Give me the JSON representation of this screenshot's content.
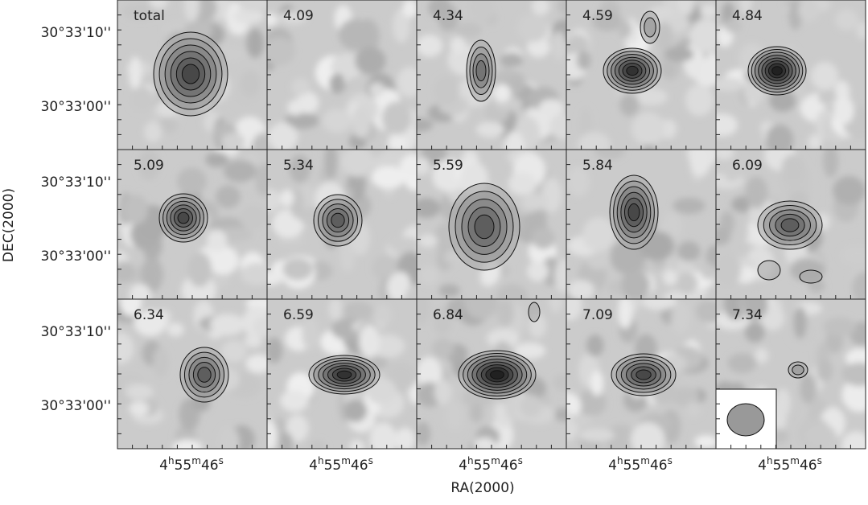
{
  "panels": [
    {
      "label": "total"
    },
    {
      "label": "4.09"
    },
    {
      "label": "4.34"
    },
    {
      "label": "4.59"
    },
    {
      "label": "4.84"
    },
    {
      "label": "5.09"
    },
    {
      "label": "5.34"
    },
    {
      "label": "5.59"
    },
    {
      "label": "5.84"
    },
    {
      "label": "6.09"
    },
    {
      "label": "6.34"
    },
    {
      "label": "6.59"
    },
    {
      "label": "6.84"
    },
    {
      "label": "7.09"
    },
    {
      "label": "7.34"
    }
  ],
  "y_axis": {
    "title": "DEC(2000)",
    "ticks": [
      "30°33'10''",
      "30°33'00''"
    ]
  },
  "x_axis": {
    "title": "RA(2000)",
    "tick": [
      "4",
      "h",
      "55",
      "m",
      "46",
      "s"
    ]
  }
}
